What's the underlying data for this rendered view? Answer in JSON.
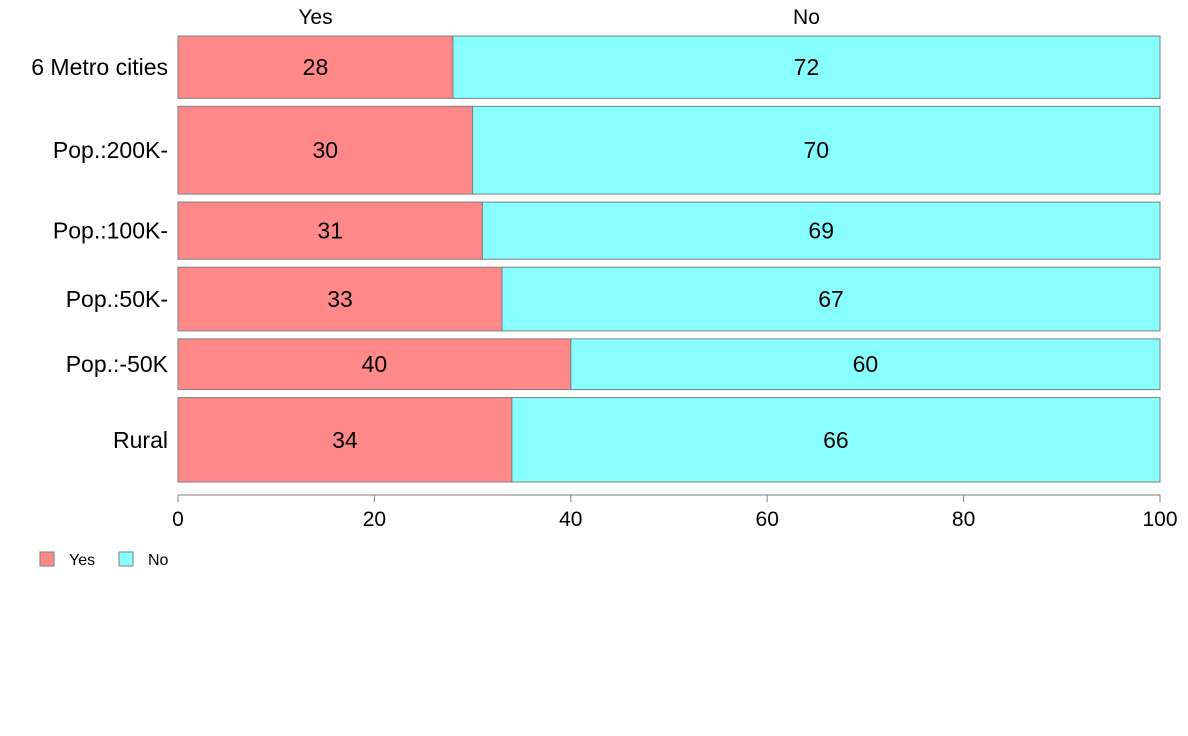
{
  "chart_data": {
    "type": "bar",
    "orientation": "horizontal",
    "stacked": true,
    "categories": [
      "6 Metro cities",
      "Pop.:200K-",
      "Pop.:100K-",
      "Pop.:50K-",
      "Pop.:-50K",
      "Rural"
    ],
    "category_widths": [
      0.96,
      1.35,
      0.88,
      0.98,
      0.78,
      1.3
    ],
    "series": [
      {
        "name": "Yes",
        "values": [
          28,
          30,
          31,
          33,
          40,
          34
        ],
        "color": "#ff8888"
      },
      {
        "name": "No",
        "values": [
          72,
          70,
          69,
          67,
          60,
          66
        ],
        "color": "#88ffff"
      }
    ],
    "data_labels": [
      [
        "28",
        "30",
        "31",
        "33",
        "40",
        "34"
      ],
      [
        "72",
        "70",
        "69",
        "67",
        "60",
        "66"
      ]
    ],
    "top_labels": [
      "Yes",
      "No"
    ],
    "xticks": [
      "0",
      "20",
      "40",
      "60",
      "80",
      "100"
    ],
    "xlim": [
      0,
      100
    ],
    "xlabel": "",
    "ylabel": "",
    "title": "",
    "grid": false,
    "legend": {
      "position": "bottom-left",
      "entries": [
        {
          "label": "Yes",
          "color": "#ff8888"
        },
        {
          "label": "No",
          "color": "#88ffff"
        }
      ]
    },
    "bar_border_color": "#7f7f7f",
    "axis_color": "#7f7f7f"
  }
}
